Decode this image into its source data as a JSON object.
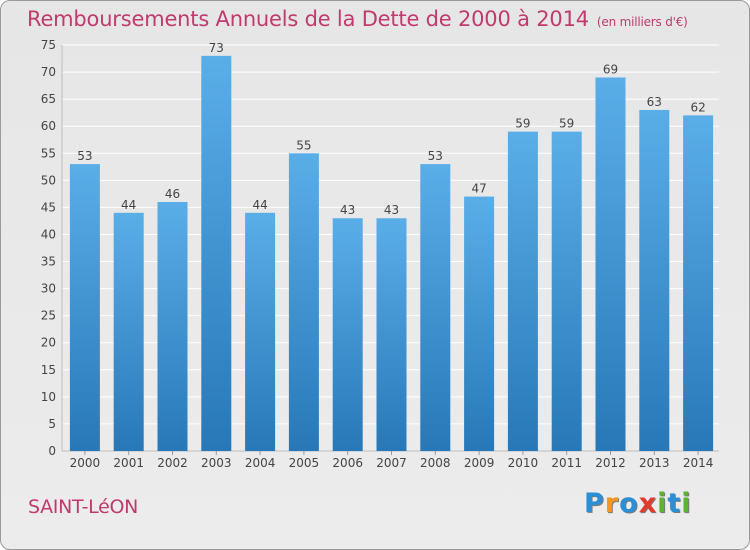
{
  "title": "Remboursements Annuels de la Dette de 2000 à 2014",
  "unit": "(en milliers d'€)",
  "commune": "SAINT-LéON",
  "logo": {
    "letters": [
      "P",
      "r",
      "o",
      "x",
      "i",
      "t",
      "i"
    ],
    "colors": [
      "#2a8fd6",
      "#f39a1e",
      "#2a8fd6",
      "#e23b2e",
      "#5cb531",
      "#2a8fd6",
      "#5cb531"
    ]
  },
  "colors": {
    "bar_top": "#5aaee8",
    "bar_bottom": "#2878b8",
    "title": "#c03a6f",
    "grid": "#ffffff"
  },
  "chart_data": {
    "type": "bar",
    "title": "Remboursements Annuels de la Dette de 2000 à 2014",
    "categories": [
      "2000",
      "2001",
      "2002",
      "2003",
      "2004",
      "2005",
      "2006",
      "2007",
      "2008",
      "2009",
      "2010",
      "2011",
      "2012",
      "2013",
      "2014"
    ],
    "values": [
      53,
      44,
      46,
      73,
      44,
      55,
      43,
      43,
      53,
      47,
      59,
      59,
      69,
      63,
      62
    ],
    "ylim": [
      0,
      75
    ],
    "yticks": [
      0,
      5,
      10,
      15,
      20,
      25,
      30,
      35,
      40,
      45,
      50,
      55,
      60,
      65,
      70,
      75
    ],
    "grid": true,
    "xlabel": "",
    "ylabel": ""
  }
}
